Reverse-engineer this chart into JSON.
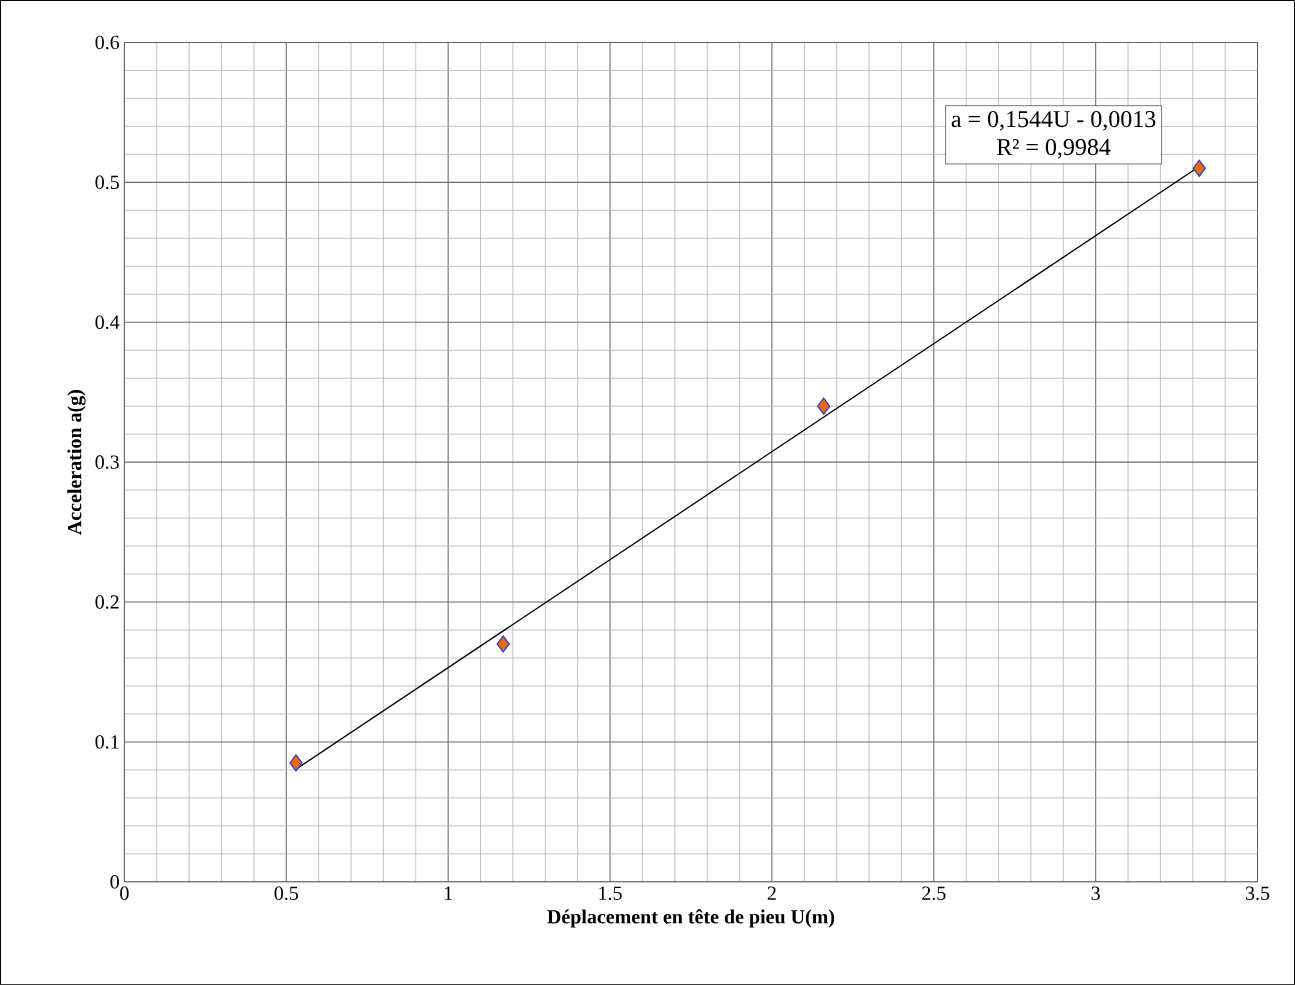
{
  "chart_data": {
    "type": "scatter",
    "xlabel": "Déplacement en tête de pieu U(m)",
    "ylabel": "Acceleration  a(g)",
    "xlim": [
      0,
      3.5
    ],
    "ylim": [
      0,
      0.6
    ],
    "xticks": [
      0,
      0.5,
      1,
      1.5,
      2,
      2.5,
      3,
      3.5
    ],
    "yticks": [
      0,
      0.1,
      0.2,
      0.3,
      0.4,
      0.5,
      0.6
    ],
    "grid": true,
    "series": [
      {
        "marker": "diamond",
        "color": "#e46c0a",
        "x": [
          0.53,
          1.17,
          2.16,
          3.32
        ],
        "values": [
          0.085,
          0.17,
          0.34,
          0.51
        ]
      },
      {
        "type": "line",
        "color": "#000000",
        "x": [
          0.53,
          3.32
        ],
        "values": [
          0.0805,
          0.5113
        ]
      }
    ],
    "annotations": [
      "a = 0,1544U - 0,0013",
      "R² = 0,9984"
    ]
  }
}
